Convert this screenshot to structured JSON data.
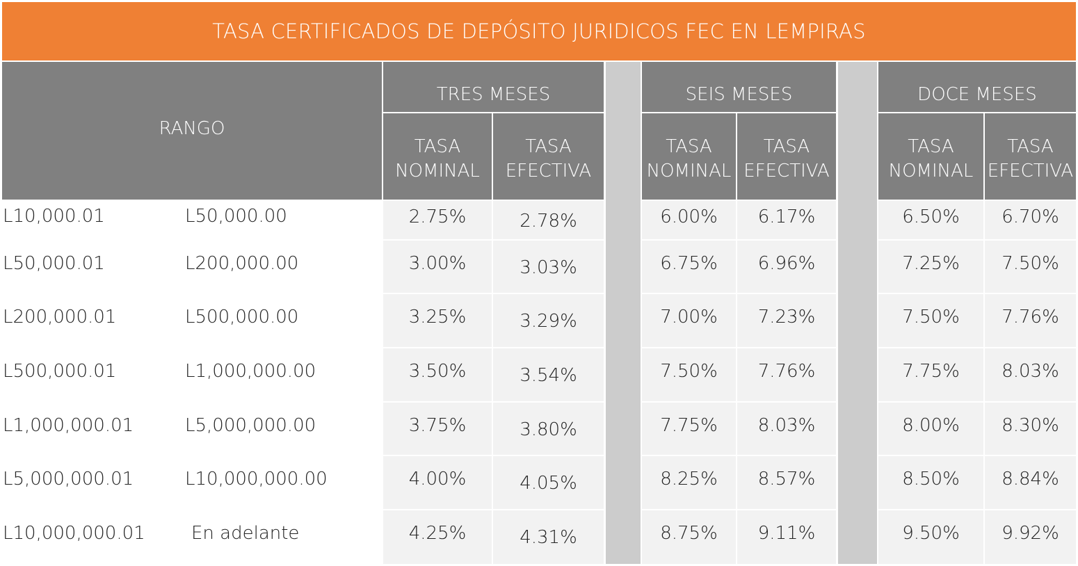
{
  "title": "TASA CERTIFICADOS  DE DEPÓSITO JURIDICOS FEC EN LEMPIRAS",
  "headers": {
    "range": "RANGO",
    "terms": [
      "TRES MESES",
      "SEIS MESES",
      "DOCE MESES"
    ],
    "nominal_line1": "TASA",
    "nominal_line2": "NOMINAL",
    "effective_line1": "TASA",
    "effective_line2": "EFECTIVA"
  },
  "rows": [
    {
      "from": "L10,000.01",
      "to": "L50,000.00",
      "rates": [
        "2.75%",
        "2.78%",
        "6.00%",
        "6.17%",
        "6.50%",
        "6.70%"
      ]
    },
    {
      "from": "L50,000.01",
      "to": "L200,000.00",
      "rates": [
        "3.00%",
        "3.03%",
        "6.75%",
        "6.96%",
        "7.25%",
        "7.50%"
      ]
    },
    {
      "from": "L200,000.01",
      "to": "L500,000.00",
      "rates": [
        "3.25%",
        "3.29%",
        "7.00%",
        "7.23%",
        "7.50%",
        "7.76%"
      ]
    },
    {
      "from": "L500,000.01",
      "to": "L1,000,000.00",
      "rates": [
        "3.50%",
        "3.54%",
        "7.50%",
        "7.76%",
        "7.75%",
        "8.03%"
      ]
    },
    {
      "from": "L1,000,000.01",
      "to": "L5,000,000.00",
      "rates": [
        "3.75%",
        "3.80%",
        "7.75%",
        "8.03%",
        "8.00%",
        "8.30%"
      ]
    },
    {
      "from": "L5,000,000.01",
      "to": "L10,000,000.00",
      "rates": [
        "4.00%",
        "4.05%",
        "8.25%",
        "8.57%",
        "8.50%",
        "8.84%"
      ]
    },
    {
      "from": "L10,000,000.01",
      "to": "En adelante",
      "rates": [
        "4.25%",
        "4.31%",
        "8.75%",
        "9.11%",
        "9.50%",
        "9.92%"
      ]
    }
  ],
  "colors": {
    "title_bg": "#ef8034",
    "header_bg": "#808080",
    "separator_bg": "#cccccc",
    "cell_bg": "#f2f2f2"
  }
}
